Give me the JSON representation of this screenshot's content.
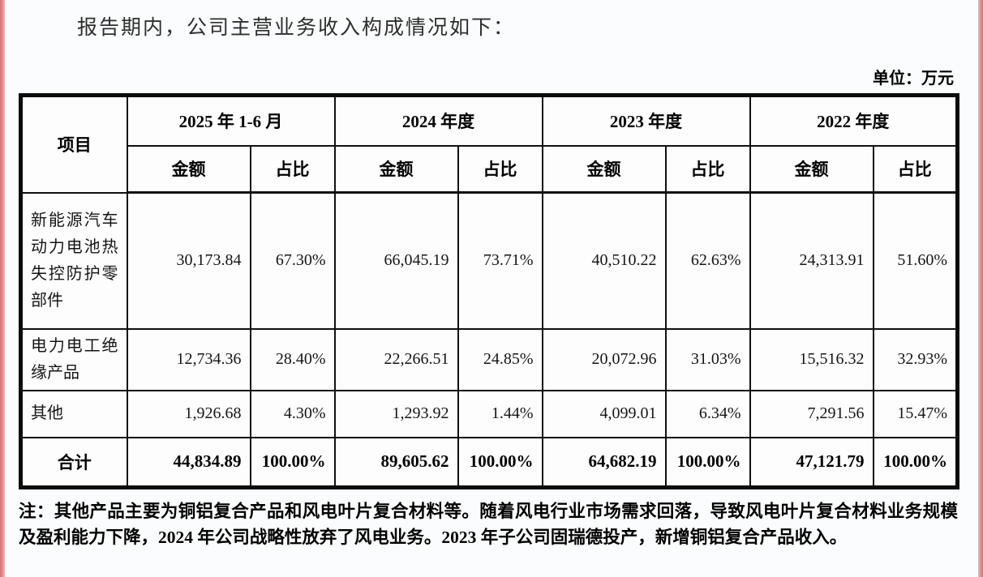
{
  "page": {
    "intro_text": "报告期内，公司主营业务收入构成情况如下：",
    "unit_label": "单位：万元",
    "note_text": "注：其他产品主要为铜铝复合产品和风电叶片复合材料等。随着风电行业市场需求回落，导致风电叶片复合材料业务规模及盈利能力下降，2024 年公司战略性放弃了风电业务。2023 年子公司固瑞德投产，新增铜铝复合产品收入。"
  },
  "table": {
    "item_header": "项目",
    "periods": [
      "2025 年 1-6 月",
      "2024 年度",
      "2023 年度",
      "2022 年度"
    ],
    "sub_headers": {
      "amount": "金额",
      "share": "占比"
    },
    "rows": [
      {
        "item": "新能源汽车动力电池热失控防护零部件",
        "cells": [
          "30,173.84",
          "67.30%",
          "66,045.19",
          "73.71%",
          "40,510.22",
          "62.63%",
          "24,313.91",
          "51.60%"
        ]
      },
      {
        "item": "电力电工绝缘产品",
        "cells": [
          "12,734.36",
          "28.40%",
          "22,266.51",
          "24.85%",
          "20,072.96",
          "31.03%",
          "15,516.32",
          "32.93%"
        ]
      },
      {
        "item": "其他",
        "cells": [
          "1,926.68",
          "4.30%",
          "1,293.92",
          "1.44%",
          "4,099.01",
          "6.34%",
          "7,291.56",
          "15.47%"
        ]
      }
    ],
    "total_row": {
      "item": "合计",
      "cells": [
        "44,834.89",
        "100.00%",
        "89,605.62",
        "100.00%",
        "64,682.19",
        "100.00%",
        "47,121.79",
        "100.00%"
      ]
    }
  },
  "colors": {
    "border": "#101010",
    "text": "#151515",
    "edge_strip": "#d46f71",
    "page_bg": "#fbfcfd"
  }
}
